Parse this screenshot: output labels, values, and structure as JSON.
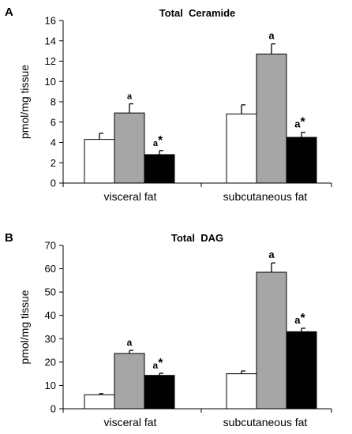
{
  "chart_data": [
    {
      "panel": "A",
      "type": "bar",
      "title": "Total  Ceramide",
      "ylabel": "pmol/mg tissue",
      "xlabel": "",
      "ylim": [
        0,
        16
      ],
      "yticks": [
        0,
        2,
        4,
        6,
        8,
        10,
        12,
        14,
        16
      ],
      "grid": false,
      "categories": [
        "visceral fat",
        "subcutaneous fat"
      ],
      "series": [
        {
          "fill": "#ffffff",
          "values": [
            4.3,
            6.8
          ],
          "errors": [
            0.6,
            0.9
          ],
          "annotations": [
            "",
            ""
          ]
        },
        {
          "fill": "#a6a6a6",
          "values": [
            6.9,
            12.7
          ],
          "errors": [
            0.9,
            1.0
          ],
          "annotations": [
            "a",
            "a"
          ]
        },
        {
          "fill": "#000000",
          "values": [
            2.8,
            4.5
          ],
          "errors": [
            0.4,
            0.5
          ],
          "annotations": [
            "a*",
            "a*"
          ]
        }
      ]
    },
    {
      "panel": "B",
      "type": "bar",
      "title": "Total  DAG",
      "ylabel": "pmol/mg tissue",
      "xlabel": "",
      "ylim": [
        0,
        70
      ],
      "yticks": [
        0,
        10,
        20,
        30,
        40,
        50,
        60,
        70
      ],
      "grid": false,
      "categories": [
        "visceral fat",
        "subcutaneous fat"
      ],
      "series": [
        {
          "fill": "#ffffff",
          "values": [
            6,
            15
          ],
          "errors": [
            0.5,
            1.2
          ],
          "annotations": [
            "",
            ""
          ]
        },
        {
          "fill": "#a6a6a6",
          "values": [
            23.7,
            58.5
          ],
          "errors": [
            1.3,
            4.0
          ],
          "annotations": [
            "a",
            "a"
          ]
        },
        {
          "fill": "#000000",
          "values": [
            14.3,
            33
          ],
          "errors": [
            0.9,
            1.5
          ],
          "annotations": [
            "a*",
            "a*"
          ]
        }
      ]
    }
  ]
}
